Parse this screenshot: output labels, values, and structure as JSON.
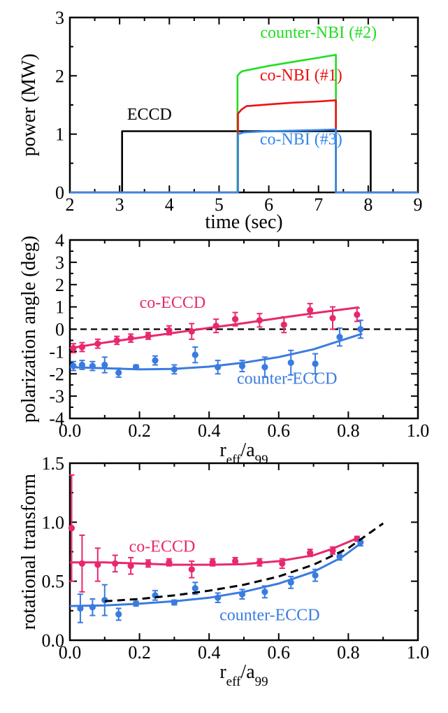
{
  "chart_data": [
    {
      "type": "line",
      "title": "",
      "xlabel": "time (sec)",
      "ylabel": "power (MW)",
      "xlim": [
        2,
        9
      ],
      "ylim": [
        0,
        3
      ],
      "xticks": [
        "2",
        "3",
        "4",
        "5",
        "6",
        "7",
        "8",
        "9"
      ],
      "yticks": [
        "0",
        "1",
        "2",
        "3"
      ],
      "grid": false,
      "series": [
        {
          "name": "ECCD",
          "color": "#000000",
          "x": [
            2.0,
            3.05,
            3.05,
            8.05,
            8.05,
            9.0
          ],
          "y": [
            0,
            0,
            1.05,
            1.05,
            0,
            0
          ]
        },
        {
          "name": "counter-NBI (#2)",
          "color": "#22dd22",
          "x": [
            2.0,
            5.37,
            5.37,
            5.42,
            5.47,
            6.0,
            6.5,
            7.0,
            7.35,
            7.35,
            9.0
          ],
          "y": [
            0,
            0,
            2.0,
            2.05,
            2.08,
            2.17,
            2.24,
            2.31,
            2.36,
            0,
            0
          ]
        },
        {
          "name": "co-NBI (#1)",
          "color": "#ee1111",
          "x": [
            2.0,
            5.38,
            5.38,
            5.45,
            5.55,
            6.0,
            6.5,
            7.0,
            7.35,
            7.35,
            9.0
          ],
          "y": [
            0,
            0,
            1.35,
            1.42,
            1.48,
            1.51,
            1.54,
            1.56,
            1.58,
            0,
            0
          ]
        },
        {
          "name": "co-NBI (#3)",
          "color": "#3388ee",
          "x": [
            2.0,
            5.38,
            5.38,
            5.5,
            6.0,
            6.5,
            7.0,
            7.35,
            7.35,
            9.0
          ],
          "y": [
            0,
            0,
            1.0,
            1.03,
            1.05,
            1.06,
            1.07,
            1.08,
            0,
            0
          ]
        }
      ],
      "annotations": [
        {
          "text": "counter-NBI (#2)",
          "x": 7.0,
          "y": 2.65,
          "color": "#22dd22"
        },
        {
          "text": "co-NBI (#1)",
          "x": 6.65,
          "y": 1.92,
          "color": "#ee1111"
        },
        {
          "text": "ECCD",
          "x": 3.6,
          "y": 1.25,
          "color": "#000000"
        },
        {
          "text": "co-NBI (#3)",
          "x": 6.65,
          "y": 0.82,
          "color": "#3388ee"
        }
      ]
    },
    {
      "type": "scatter",
      "title": "",
      "xlabel_main": "r",
      "xlabel_sub1": "eff",
      "xlabel_mid": "/a",
      "xlabel_sub2": "99",
      "ylabel": "polarization angle (deg)",
      "xlim": [
        0,
        1.0
      ],
      "ylim": [
        -4,
        4
      ],
      "xticks": [
        "0.0",
        "0.2",
        "0.4",
        "0.6",
        "0.8",
        "1.0"
      ],
      "yticks": [
        "-4",
        "-3",
        "-2",
        "-1",
        "0",
        "1",
        "2",
        "3",
        "4"
      ],
      "grid": false,
      "reference_line": {
        "y": 0,
        "style": "dashed",
        "color": "#000000"
      },
      "series": [
        {
          "name": "co-ECCD",
          "color": "#e8286e",
          "points": [
            {
              "x": 0.01,
              "y": -0.85,
              "err": 0.2
            },
            {
              "x": 0.035,
              "y": -0.8,
              "err": 0.2
            },
            {
              "x": 0.08,
              "y": -0.65,
              "err": 0.2
            },
            {
              "x": 0.135,
              "y": -0.5,
              "err": 0.18
            },
            {
              "x": 0.175,
              "y": -0.4,
              "err": 0.18
            },
            {
              "x": 0.225,
              "y": -0.3,
              "err": 0.15
            },
            {
              "x": 0.285,
              "y": -0.05,
              "err": 0.2
            },
            {
              "x": 0.35,
              "y": -0.1,
              "err": 0.35
            },
            {
              "x": 0.42,
              "y": 0.15,
              "err": 0.3
            },
            {
              "x": 0.475,
              "y": 0.45,
              "err": 0.3
            },
            {
              "x": 0.545,
              "y": 0.4,
              "err": 0.3
            },
            {
              "x": 0.615,
              "y": 0.2,
              "err": 0.35
            },
            {
              "x": 0.69,
              "y": 0.85,
              "err": 0.3
            },
            {
              "x": 0.755,
              "y": 0.5,
              "err": 0.5
            },
            {
              "x": 0.825,
              "y": 0.65,
              "err": 0.3
            }
          ],
          "fit": {
            "x": [
              0,
              0.1,
              0.2,
              0.3,
              0.4,
              0.5,
              0.6,
              0.7,
              0.83
            ],
            "y": [
              -0.85,
              -0.6,
              -0.38,
              -0.16,
              0.06,
              0.27,
              0.5,
              0.72,
              0.98
            ]
          }
        },
        {
          "name": "counter-ECCD",
          "color": "#3a7be0",
          "points": [
            {
              "x": 0.01,
              "y": -1.65,
              "err": 0.2
            },
            {
              "x": 0.035,
              "y": -1.6,
              "err": 0.2
            },
            {
              "x": 0.065,
              "y": -1.65,
              "err": 0.2
            },
            {
              "x": 0.1,
              "y": -1.6,
              "err": 0.35
            },
            {
              "x": 0.14,
              "y": -1.95,
              "err": 0.2
            },
            {
              "x": 0.19,
              "y": -1.7,
              "err": 0.1
            },
            {
              "x": 0.245,
              "y": -1.4,
              "err": 0.2
            },
            {
              "x": 0.3,
              "y": -1.8,
              "err": 0.2
            },
            {
              "x": 0.36,
              "y": -1.15,
              "err": 0.35
            },
            {
              "x": 0.425,
              "y": -1.7,
              "err": 0.3
            },
            {
              "x": 0.495,
              "y": -1.65,
              "err": 0.25
            },
            {
              "x": 0.56,
              "y": -1.7,
              "err": 0.45
            },
            {
              "x": 0.635,
              "y": -1.5,
              "err": 0.55
            },
            {
              "x": 0.705,
              "y": -1.55,
              "err": 0.45
            },
            {
              "x": 0.775,
              "y": -0.35,
              "err": 0.4
            },
            {
              "x": 0.835,
              "y": 0.0,
              "err": 0.4
            }
          ],
          "fit": {
            "x": [
              0,
              0.1,
              0.2,
              0.3,
              0.4,
              0.5,
              0.6,
              0.7,
              0.77,
              0.84
            ],
            "y": [
              -1.7,
              -1.75,
              -1.8,
              -1.78,
              -1.68,
              -1.5,
              -1.25,
              -0.9,
              -0.55,
              -0.2
            ]
          }
        }
      ],
      "annotations": [
        {
          "text": "co-ECCD",
          "x": 0.2,
          "y": 0.95,
          "color": "#e8286e"
        },
        {
          "text": "counter-ECCD",
          "x": 0.48,
          "y": -2.45,
          "color": "#3a7be0"
        }
      ]
    },
    {
      "type": "scatter",
      "title": "",
      "xlabel_main": "r",
      "xlabel_sub1": "eff",
      "xlabel_mid": "/a",
      "xlabel_sub2": "99",
      "ylabel": "rotational transform",
      "xlim": [
        0,
        1.0
      ],
      "ylim": [
        0,
        1.5
      ],
      "xticks": [
        "0.0",
        "0.2",
        "0.4",
        "0.6",
        "0.8",
        "1.0"
      ],
      "yticks": [
        "0.0",
        "0.5",
        "1.0",
        "1.5"
      ],
      "grid": false,
      "series": [
        {
          "name": "co-ECCD",
          "color": "#e8286e",
          "points": [
            {
              "x": 0.005,
              "y": 0.95,
              "err": 0.45
            },
            {
              "x": 0.035,
              "y": 0.65,
              "err": 0.24
            },
            {
              "x": 0.08,
              "y": 0.64,
              "err": 0.14
            },
            {
              "x": 0.13,
              "y": 0.65,
              "err": 0.07
            },
            {
              "x": 0.175,
              "y": 0.63,
              "err": 0.07
            },
            {
              "x": 0.225,
              "y": 0.65,
              "err": 0.03
            },
            {
              "x": 0.285,
              "y": 0.66,
              "err": 0.03
            },
            {
              "x": 0.35,
              "y": 0.6,
              "err": 0.07
            },
            {
              "x": 0.41,
              "y": 0.66,
              "err": 0.03
            },
            {
              "x": 0.475,
              "y": 0.67,
              "err": 0.03
            },
            {
              "x": 0.545,
              "y": 0.66,
              "err": 0.03
            },
            {
              "x": 0.61,
              "y": 0.65,
              "err": 0.04
            },
            {
              "x": 0.69,
              "y": 0.74,
              "err": 0.03
            },
            {
              "x": 0.755,
              "y": 0.76,
              "err": 0.03
            },
            {
              "x": 0.825,
              "y": 0.86,
              "err": 0.02
            }
          ],
          "fit": {
            "x": [
              0,
              0.1,
              0.2,
              0.3,
              0.4,
              0.5,
              0.6,
              0.7,
              0.75,
              0.83
            ],
            "y": [
              0.66,
              0.66,
              0.65,
              0.64,
              0.64,
              0.645,
              0.67,
              0.72,
              0.77,
              0.87
            ]
          }
        },
        {
          "name": "counter-ECCD",
          "color": "#3a7be0",
          "points": [
            {
              "x": 0.03,
              "y": 0.27,
              "err": 0.12
            },
            {
              "x": 0.065,
              "y": 0.28,
              "err": 0.07
            },
            {
              "x": 0.1,
              "y": 0.34,
              "err": 0.13
            },
            {
              "x": 0.14,
              "y": 0.22,
              "err": 0.05
            },
            {
              "x": 0.19,
              "y": 0.31,
              "err": 0.02
            },
            {
              "x": 0.245,
              "y": 0.38,
              "err": 0.04
            },
            {
              "x": 0.3,
              "y": 0.32,
              "err": 0.02
            },
            {
              "x": 0.36,
              "y": 0.44,
              "err": 0.05
            },
            {
              "x": 0.425,
              "y": 0.36,
              "err": 0.04
            },
            {
              "x": 0.495,
              "y": 0.39,
              "err": 0.04
            },
            {
              "x": 0.56,
              "y": 0.41,
              "err": 0.05
            },
            {
              "x": 0.635,
              "y": 0.49,
              "err": 0.05
            },
            {
              "x": 0.705,
              "y": 0.55,
              "err": 0.05
            },
            {
              "x": 0.775,
              "y": 0.71,
              "err": 0.03
            },
            {
              "x": 0.835,
              "y": 0.83,
              "err": 0.03
            }
          ],
          "fit": {
            "x": [
              0,
              0.1,
              0.2,
              0.3,
              0.4,
              0.5,
              0.6,
              0.7,
              0.78,
              0.84
            ],
            "y": [
              0.29,
              0.295,
              0.31,
              0.33,
              0.36,
              0.41,
              0.48,
              0.58,
              0.7,
              0.83
            ]
          }
        },
        {
          "name": "",
          "color": "#000000",
          "style": "dashed",
          "fit": {
            "x": [
              0.1,
              0.2,
              0.3,
              0.4,
              0.5,
              0.6,
              0.7,
              0.8,
              0.9
            ],
            "y": [
              0.33,
              0.35,
              0.38,
              0.42,
              0.47,
              0.54,
              0.64,
              0.78,
              0.99
            ]
          }
        }
      ],
      "annotations": [
        {
          "text": "co-ECCD",
          "x": 0.17,
          "y": 0.75,
          "color": "#e8286e"
        },
        {
          "text": "counter-ECCD",
          "x": 0.43,
          "y": 0.17,
          "color": "#3a7be0"
        }
      ]
    }
  ]
}
